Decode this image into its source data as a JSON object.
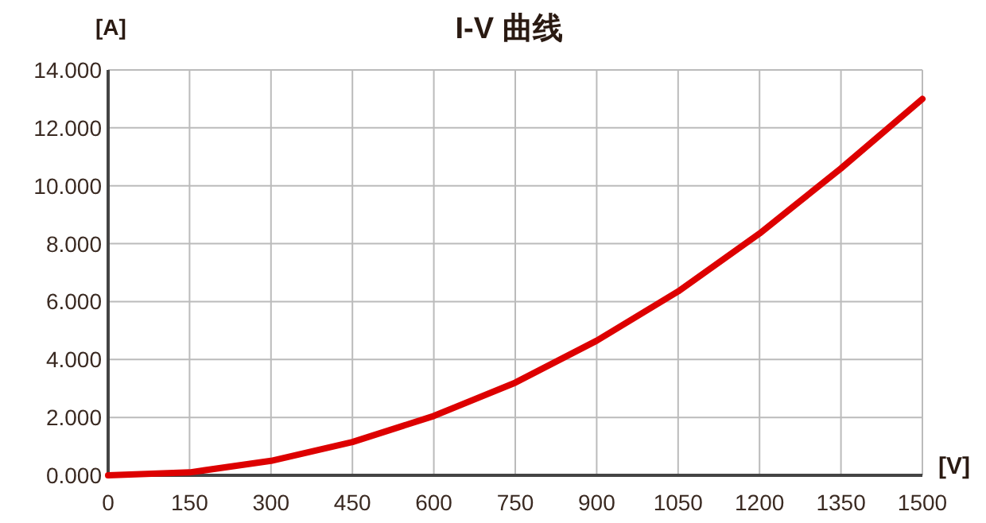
{
  "chart_data": {
    "type": "line",
    "title": "I-V 曲线",
    "ylabel": "[A]",
    "xlabel": "[V]",
    "x": [
      0,
      150,
      300,
      450,
      600,
      750,
      900,
      1050,
      1200,
      1350,
      1500
    ],
    "series": [
      {
        "color": "#dd0000",
        "values": [
          0,
          0.1,
          0.5,
          1.15,
          2.05,
          3.2,
          4.65,
          6.35,
          8.35,
          10.6,
          13.0
        ]
      }
    ],
    "xlim": [
      0,
      1500
    ],
    "xticks": [
      0,
      150,
      300,
      450,
      600,
      750,
      900,
      1050,
      1200,
      1350,
      1500
    ],
    "ylim": [
      0,
      14
    ],
    "yticks": [
      {
        "value": 0,
        "label": "0.000"
      },
      {
        "value": 2,
        "label": "2.000"
      },
      {
        "value": 4,
        "label": "4.000"
      },
      {
        "value": 6,
        "label": "6.000"
      },
      {
        "value": 8,
        "label": "8.000"
      },
      {
        "value": 10,
        "label": "10.000"
      },
      {
        "value": 12,
        "label": "12.000"
      },
      {
        "value": 14,
        "label": "14.000"
      }
    ],
    "grid": true,
    "marker": "none",
    "line_style": "solid"
  }
}
